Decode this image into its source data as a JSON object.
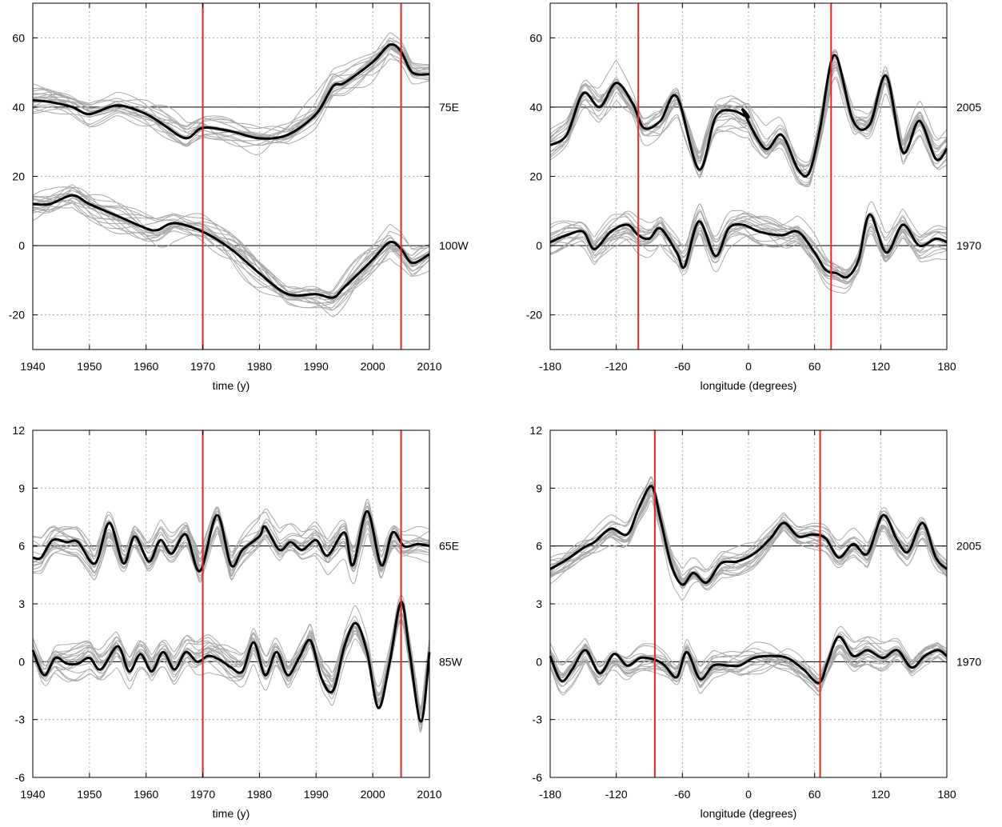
{
  "chart_data": [
    {
      "type": "line",
      "xlabel": "time (y)",
      "ylabel": "",
      "xlim": [
        1940,
        2010
      ],
      "ylim": [
        -30,
        70
      ],
      "xticks": [
        1940,
        1950,
        1960,
        1970,
        1980,
        1990,
        2000,
        2010
      ],
      "yticks": [
        -20,
        0,
        20,
        40,
        60
      ],
      "grid": true,
      "vlines": [
        1970,
        2005
      ],
      "hlines": [
        0,
        40
      ],
      "spread": 5.5,
      "series": [
        {
          "name": "75E",
          "label_y": 40,
          "x": [
            1940,
            1943,
            1947,
            1950,
            1955,
            1960,
            1963,
            1967,
            1970,
            1975,
            1980,
            1985,
            1990,
            1993,
            1995,
            2000,
            2003,
            2005,
            2007,
            2010
          ],
          "values": [
            42,
            41.5,
            40,
            38,
            40.5,
            38,
            35,
            31,
            34,
            33,
            31,
            32,
            38,
            46,
            47,
            53,
            58,
            56,
            50,
            49.5
          ]
        },
        {
          "name": "100W",
          "label_y": 0,
          "x": [
            1940,
            1943,
            1947,
            1950,
            1955,
            1960,
            1962,
            1965,
            1970,
            1975,
            1980,
            1985,
            1990,
            1993,
            1995,
            2000,
            2003,
            2005,
            2007,
            2010
          ],
          "values": [
            12,
            12,
            14.5,
            12,
            8.5,
            5,
            4.5,
            6.5,
            4,
            -1,
            -8,
            -14,
            -14,
            -15,
            -12,
            -4,
            1,
            -1,
            -5,
            -2.5
          ]
        }
      ]
    },
    {
      "type": "line",
      "xlabel": "longitude (degrees)",
      "ylabel": "",
      "xlim": [
        -180,
        180
      ],
      "ylim": [
        -30,
        70
      ],
      "xticks": [
        -180,
        -120,
        -60,
        0,
        60,
        120,
        180
      ],
      "yticks": [
        -20,
        0,
        20,
        40,
        60
      ],
      "grid": true,
      "vlines": [
        -100,
        75
      ],
      "hlines": [
        0,
        40
      ],
      "spread": 6,
      "series": [
        {
          "name": "2005",
          "label_y": 40,
          "x": [
            -180,
            -165,
            -150,
            -135,
            -120,
            -105,
            -95,
            -80,
            -65,
            -45,
            -30,
            -15,
            0,
            -5,
            15,
            30,
            45,
            55,
            65,
            78,
            95,
            110,
            125,
            140,
            155,
            170,
            180
          ],
          "values": [
            29,
            32,
            44,
            40,
            47,
            41,
            34,
            36,
            43,
            22,
            37,
            39,
            37,
            39,
            28,
            32,
            22,
            21,
            34,
            55,
            36,
            35,
            49,
            27,
            36,
            25,
            28
          ]
        },
        {
          "name": "1970",
          "label_y": 0,
          "x": [
            -180,
            -165,
            -150,
            -140,
            -125,
            -110,
            -100,
            -90,
            -80,
            -65,
            -58,
            -45,
            -30,
            -18,
            -5,
            10,
            30,
            45,
            60,
            70,
            80,
            90,
            100,
            110,
            125,
            140,
            155,
            170,
            180
          ],
          "values": [
            1,
            3,
            4,
            -1,
            4,
            6,
            3,
            2,
            5,
            -2,
            -6,
            7,
            -3,
            5,
            6,
            4,
            3,
            4,
            -2,
            -7,
            -8,
            -9,
            -4,
            9,
            -2,
            6,
            0,
            2,
            1
          ]
        }
      ]
    },
    {
      "type": "line",
      "xlabel": "time (y)",
      "ylabel": "",
      "xlim": [
        1940,
        2010
      ],
      "ylim": [
        -6,
        12
      ],
      "xticks": [
        1940,
        1950,
        1960,
        1970,
        1980,
        1990,
        2000,
        2010
      ],
      "yticks": [
        -6,
        -3,
        0,
        3,
        6,
        9,
        12
      ],
      "grid": true,
      "vlines": [
        1970,
        2005
      ],
      "hlines": [
        0,
        6
      ],
      "spread": 1.1,
      "series": [
        {
          "name": "65E",
          "label_y": 6,
          "x": [
            1940,
            1941.5,
            1943.5,
            1946,
            1948,
            1951,
            1953.5,
            1956,
            1958,
            1960.5,
            1962.5,
            1964.5,
            1967,
            1969.5,
            1972.5,
            1975,
            1977,
            1980,
            1981,
            1983.5,
            1985.5,
            1987.5,
            1990,
            1992,
            1995,
            1996.5,
            1999,
            2001.5,
            2003.5,
            2005.5,
            2008,
            2010
          ],
          "values": [
            5.4,
            5.4,
            6.3,
            6.2,
            6.2,
            5.1,
            7.2,
            5.1,
            6.5,
            5.2,
            6.3,
            5.6,
            6.6,
            4.7,
            7.6,
            5.0,
            5.8,
            6.5,
            7.0,
            5.8,
            6.2,
            5.8,
            6.3,
            5.5,
            6.7,
            5.0,
            7.8,
            5.0,
            6.7,
            6.0,
            6.1,
            6.0
          ]
        },
        {
          "name": "85W",
          "label_y": 0,
          "x": [
            1940,
            1942,
            1944,
            1946,
            1948,
            1950,
            1952,
            1955,
            1957,
            1959,
            1961,
            1963,
            1965,
            1967,
            1969,
            1971,
            1973,
            1975,
            1977,
            1979,
            1981,
            1983,
            1985,
            1987,
            1989,
            1991,
            1993,
            1995,
            1997,
            1999,
            2001,
            2003,
            2005,
            2006.5,
            2008.5,
            2010
          ],
          "values": [
            0.6,
            -0.7,
            0.2,
            -0.1,
            -0.1,
            0.2,
            -0.4,
            0.8,
            -0.5,
            0.4,
            -0.5,
            0.5,
            -0.4,
            0.5,
            0.0,
            0.3,
            0.1,
            -0.3,
            -0.5,
            1.0,
            -0.7,
            0.5,
            -0.7,
            0.2,
            1.1,
            -0.9,
            -1.5,
            0.8,
            2.0,
            0.5,
            -2.4,
            0.0,
            3.1,
            0.5,
            -3.1,
            0.5
          ]
        }
      ]
    },
    {
      "type": "line",
      "xlabel": "longitude (degrees)",
      "ylabel": "",
      "xlim": [
        -180,
        180
      ],
      "ylim": [
        -6,
        12
      ],
      "xticks": [
        -180,
        -120,
        -60,
        0,
        60,
        120,
        180
      ],
      "yticks": [
        -6,
        -3,
        0,
        3,
        6,
        9,
        12
      ],
      "grid": true,
      "vlines": [
        -85,
        65
      ],
      "hlines": [
        0,
        6
      ],
      "spread": 0.9,
      "series": [
        {
          "name": "2005",
          "label_y": 6,
          "x": [
            -180,
            -165,
            -150,
            -140,
            -125,
            -110,
            -100,
            -88,
            -80,
            -70,
            -60,
            -50,
            -38,
            -25,
            -10,
            5,
            20,
            32,
            45,
            58,
            70,
            82,
            95,
            108,
            122,
            135,
            145,
            158,
            170,
            180
          ],
          "values": [
            4.8,
            5.3,
            5.9,
            6.2,
            6.9,
            6.6,
            7.9,
            9.1,
            7.4,
            5.0,
            4.0,
            4.6,
            4.1,
            5.1,
            5.2,
            5.6,
            6.4,
            7.2,
            6.5,
            6.6,
            6.4,
            5.4,
            6.1,
            5.6,
            7.6,
            6.3,
            5.7,
            7.2,
            5.4,
            4.8
          ]
        },
        {
          "name": "1970",
          "label_y": 0,
          "x": [
            -180,
            -170,
            -160,
            -148,
            -135,
            -122,
            -110,
            -98,
            -85,
            -76,
            -65,
            -56,
            -44,
            -32,
            -18,
            -8,
            5,
            20,
            35,
            50,
            64,
            72,
            82,
            95,
            108,
            122,
            135,
            148,
            160,
            172,
            180
          ],
          "values": [
            0.3,
            -1.0,
            -0.4,
            0.6,
            -0.6,
            0.4,
            -0.2,
            0.2,
            0.1,
            -0.2,
            -0.8,
            0.5,
            -0.9,
            -0.2,
            -0.2,
            -0.2,
            0.2,
            0.3,
            0.2,
            -0.4,
            -1.1,
            0.0,
            1.3,
            0.3,
            0.6,
            0.2,
            0.6,
            -0.3,
            0.3,
            0.6,
            0.3
          ]
        }
      ]
    }
  ]
}
